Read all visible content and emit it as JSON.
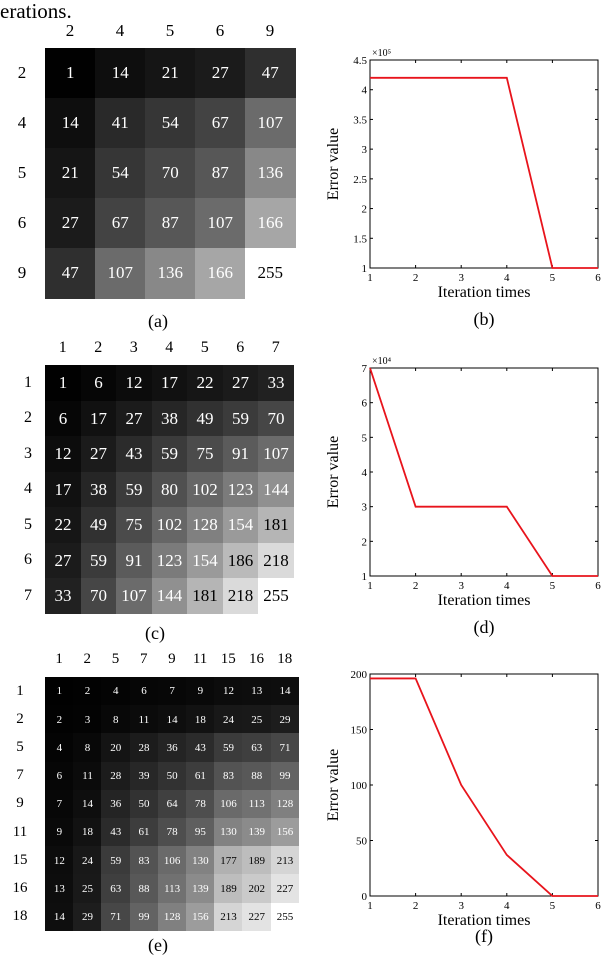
{
  "page_text": "erations.",
  "matrices": [
    {
      "label": "(a)",
      "row_headers": [
        "2",
        "4",
        "5",
        "6",
        "9"
      ],
      "col_headers": [
        "2",
        "4",
        "5",
        "6",
        "9"
      ],
      "cells": [
        [
          1,
          14,
          21,
          27,
          47
        ],
        [
          14,
          41,
          54,
          67,
          107
        ],
        [
          21,
          54,
          70,
          87,
          136
        ],
        [
          27,
          67,
          87,
          107,
          166
        ],
        [
          47,
          107,
          136,
          166,
          255
        ]
      ]
    },
    {
      "label": "(c)",
      "row_headers": [
        "1",
        "2",
        "3",
        "4",
        "5",
        "6",
        "7"
      ],
      "col_headers": [
        "1",
        "2",
        "3",
        "4",
        "5",
        "6",
        "7"
      ],
      "cells": [
        [
          1,
          6,
          12,
          17,
          22,
          27,
          33
        ],
        [
          6,
          17,
          27,
          38,
          49,
          59,
          70
        ],
        [
          12,
          27,
          43,
          59,
          75,
          91,
          107
        ],
        [
          17,
          38,
          59,
          80,
          102,
          123,
          144
        ],
        [
          22,
          49,
          75,
          102,
          128,
          154,
          181
        ],
        [
          27,
          59,
          91,
          123,
          154,
          186,
          218
        ],
        [
          33,
          70,
          107,
          144,
          181,
          218,
          255
        ]
      ]
    },
    {
      "label": "(e)",
      "row_headers": [
        "1",
        "2",
        "5",
        "7",
        "9",
        "11",
        "15",
        "16",
        "18"
      ],
      "col_headers": [
        "1",
        "2",
        "5",
        "7",
        "9",
        "11",
        "15",
        "16",
        "18"
      ],
      "cells": [
        [
          1,
          2,
          4,
          6,
          7,
          9,
          12,
          13,
          14
        ],
        [
          2,
          3,
          8,
          11,
          14,
          18,
          24,
          25,
          29
        ],
        [
          4,
          8,
          20,
          28,
          36,
          43,
          59,
          63,
          71
        ],
        [
          6,
          11,
          28,
          39,
          50,
          61,
          83,
          88,
          99
        ],
        [
          7,
          14,
          36,
          50,
          64,
          78,
          106,
          113,
          128
        ],
        [
          9,
          18,
          43,
          61,
          78,
          95,
          130,
          139,
          156
        ],
        [
          12,
          24,
          59,
          83,
          106,
          130,
          177,
          189,
          213
        ],
        [
          13,
          25,
          63,
          88,
          113,
          139,
          189,
          202,
          227
        ],
        [
          14,
          29,
          71,
          99,
          128,
          156,
          213,
          227,
          255
        ]
      ]
    }
  ],
  "chart_data": [
    {
      "type": "line",
      "label": "(b)",
      "xlabel": "Iteration times",
      "ylabel": "Error value",
      "exponent": "×10⁵",
      "x": [
        1,
        2,
        3,
        4,
        5,
        6
      ],
      "y": [
        4.2,
        4.2,
        4.2,
        4.2,
        1,
        1
      ],
      "xlim": [
        1,
        6
      ],
      "ylim": [
        1,
        4.5
      ],
      "yticks": [
        1,
        1.5,
        2,
        2.5,
        3,
        3.5,
        4,
        4.5
      ],
      "ytick_labels": [
        "1",
        "1.5",
        "2",
        "2.5",
        "3",
        "3.5",
        "4",
        "4.5"
      ],
      "xticks": [
        1,
        2,
        3,
        4,
        5,
        6
      ],
      "line_color": "#e8141c",
      "grid": false
    },
    {
      "type": "line",
      "label": "(d)",
      "xlabel": "Iteration times",
      "ylabel": "Error value",
      "exponent": "×10⁴",
      "x": [
        1,
        2,
        3,
        4,
        5,
        6
      ],
      "y": [
        7,
        3,
        3,
        3,
        1,
        1
      ],
      "xlim": [
        1,
        6
      ],
      "ylim": [
        1,
        7
      ],
      "yticks": [
        1,
        2,
        3,
        4,
        5,
        6,
        7
      ],
      "ytick_labels": [
        "1",
        "2",
        "3",
        "4",
        "5",
        "6",
        "7"
      ],
      "xticks": [
        1,
        2,
        3,
        4,
        5,
        6
      ],
      "line_color": "#e8141c",
      "grid": false
    },
    {
      "type": "line",
      "label": "(f)",
      "xlabel": "Iteration times",
      "ylabel": "Error value",
      "exponent": "",
      "x": [
        1,
        2,
        3,
        4,
        5,
        6
      ],
      "y": [
        196,
        196,
        100,
        37,
        0,
        0
      ],
      "xlim": [
        1,
        6
      ],
      "ylim": [
        0,
        200
      ],
      "yticks": [
        0,
        50,
        100,
        150,
        200
      ],
      "ytick_labels": [
        "0",
        "50",
        "100",
        "150",
        "200"
      ],
      "xticks": [
        1,
        2,
        3,
        4,
        5,
        6
      ],
      "line_color": "#e8141c",
      "grid": false
    }
  ]
}
